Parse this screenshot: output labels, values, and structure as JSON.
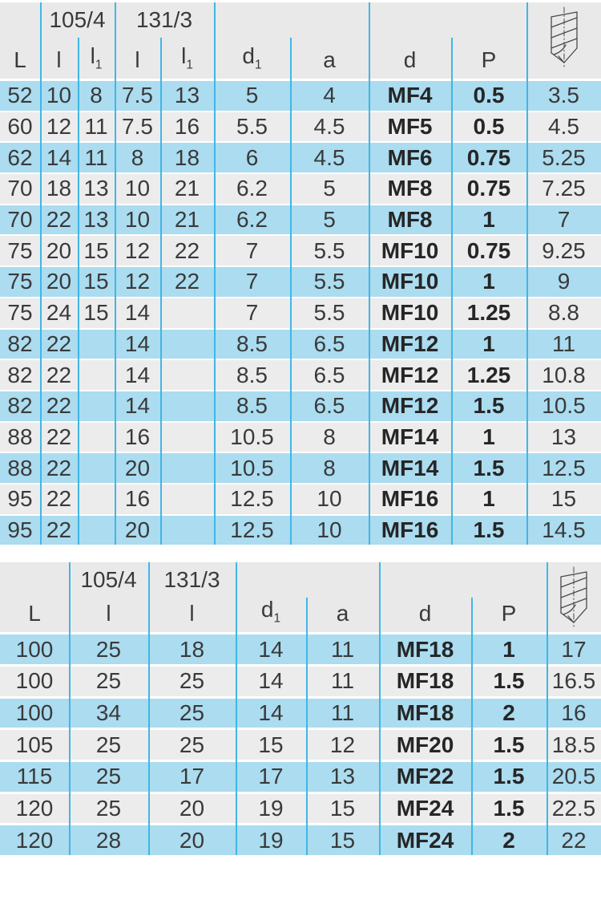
{
  "colors": {
    "row_blue": "#abdcf0",
    "row_alt": "#ececec",
    "header_bg": "#e9e9e9",
    "grid_line": "#41b6e6",
    "text": "#3a3a3a"
  },
  "table1": {
    "groups": [
      "105/4",
      "131/3"
    ],
    "columns": [
      {
        "base": "L"
      },
      {
        "base": "l"
      },
      {
        "base": "l",
        "sub": "1"
      },
      {
        "base": "l"
      },
      {
        "base": "l",
        "sub": "1"
      },
      {
        "base": "d",
        "sub": "1"
      },
      {
        "base": "a"
      },
      {
        "base": "d"
      },
      {
        "base": "P"
      },
      {
        "icon": "drill-bit-icon"
      }
    ],
    "rows": [
      [
        "52",
        "10",
        "8",
        "7.5",
        "13",
        "5",
        "4",
        "MF4",
        "0.5",
        "3.5"
      ],
      [
        "60",
        "12",
        "11",
        "7.5",
        "16",
        "5.5",
        "4.5",
        "MF5",
        "0.5",
        "4.5"
      ],
      [
        "62",
        "14",
        "11",
        "8",
        "18",
        "6",
        "4.5",
        "MF6",
        "0.75",
        "5.25"
      ],
      [
        "70",
        "18",
        "13",
        "10",
        "21",
        "6.2",
        "5",
        "MF8",
        "0.75",
        "7.25"
      ],
      [
        "70",
        "22",
        "13",
        "10",
        "21",
        "6.2",
        "5",
        "MF8",
        "1",
        "7"
      ],
      [
        "75",
        "20",
        "15",
        "12",
        "22",
        "7",
        "5.5",
        "MF10",
        "0.75",
        "9.25"
      ],
      [
        "75",
        "20",
        "15",
        "12",
        "22",
        "7",
        "5.5",
        "MF10",
        "1",
        "9"
      ],
      [
        "75",
        "24",
        "15",
        "14",
        "",
        "7",
        "5.5",
        "MF10",
        "1.25",
        "8.8"
      ],
      [
        "82",
        "22",
        "",
        "14",
        "",
        "8.5",
        "6.5",
        "MF12",
        "1",
        "11"
      ],
      [
        "82",
        "22",
        "",
        "14",
        "",
        "8.5",
        "6.5",
        "MF12",
        "1.25",
        "10.8"
      ],
      [
        "82",
        "22",
        "",
        "14",
        "",
        "8.5",
        "6.5",
        "MF12",
        "1.5",
        "10.5"
      ],
      [
        "88",
        "22",
        "",
        "16",
        "",
        "10.5",
        "8",
        "MF14",
        "1",
        "13"
      ],
      [
        "88",
        "22",
        "",
        "20",
        "",
        "10.5",
        "8",
        "MF14",
        "1.5",
        "12.5"
      ],
      [
        "95",
        "22",
        "",
        "16",
        "",
        "12.5",
        "10",
        "MF16",
        "1",
        "15"
      ],
      [
        "95",
        "22",
        "",
        "20",
        "",
        "12.5",
        "10",
        "MF16",
        "1.5",
        "14.5"
      ]
    ]
  },
  "table2": {
    "groups": [
      "105/4",
      "131/3"
    ],
    "columns": [
      {
        "base": "L"
      },
      {
        "base": "l"
      },
      {
        "base": "l"
      },
      {
        "base": "d",
        "sub": "1"
      },
      {
        "base": "a"
      },
      {
        "base": "d"
      },
      {
        "base": "P"
      },
      {
        "icon": "drill-bit-icon"
      }
    ],
    "rows": [
      [
        "100",
        "25",
        "18",
        "14",
        "11",
        "MF18",
        "1",
        "17"
      ],
      [
        "100",
        "25",
        "25",
        "14",
        "11",
        "MF18",
        "1.5",
        "16.5"
      ],
      [
        "100",
        "34",
        "25",
        "14",
        "11",
        "MF18",
        "2",
        "16"
      ],
      [
        "105",
        "25",
        "25",
        "15",
        "12",
        "MF20",
        "1.5",
        "18.5"
      ],
      [
        "115",
        "25",
        "17",
        "17",
        "13",
        "MF22",
        "1.5",
        "20.5"
      ],
      [
        "120",
        "25",
        "20",
        "19",
        "15",
        "MF24",
        "1.5",
        "22.5"
      ],
      [
        "120",
        "28",
        "20",
        "19",
        "15",
        "MF24",
        "2",
        "22"
      ]
    ]
  }
}
